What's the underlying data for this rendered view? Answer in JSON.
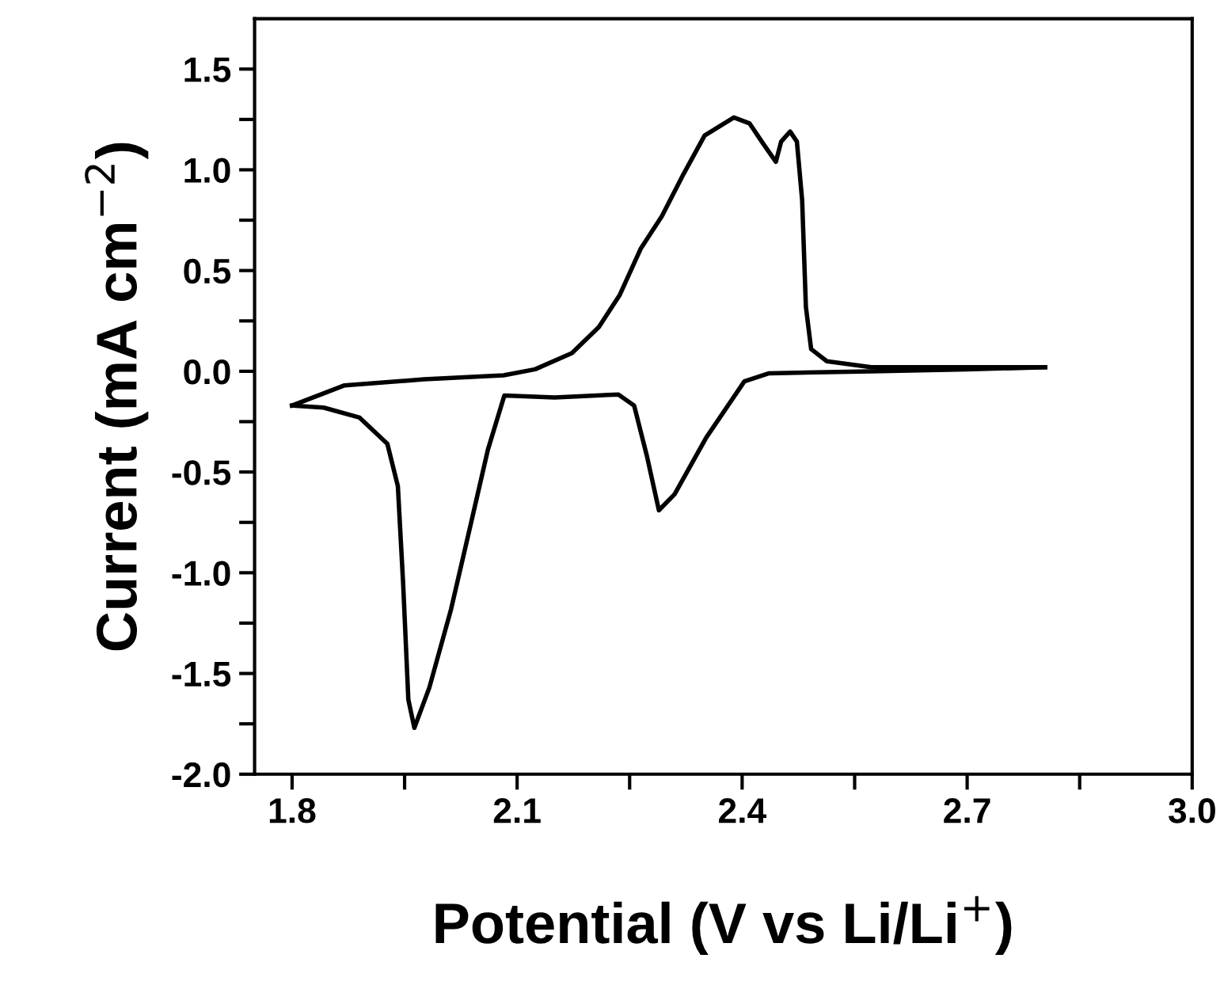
{
  "chart_data": {
    "type": "line",
    "xlabel": "Potential (V vs Li/Li$^{+}$)",
    "ylabel": "Current (mA cm$^{−2}$)",
    "series": [
      {
        "color": "#000000",
        "x": [
          1.8,
          1.87,
          1.976,
          2.082,
          2.124,
          2.173,
          2.209,
          2.237,
          2.265,
          2.293,
          2.322,
          2.35,
          2.389,
          2.41,
          2.428,
          2.445,
          2.452,
          2.464,
          2.473,
          2.48,
          2.485,
          2.492,
          2.513,
          2.572,
          2.7,
          2.804
        ],
        "values": [
          -0.17,
          -0.07,
          -0.04,
          -0.02,
          0.01,
          0.09,
          0.22,
          0.38,
          0.61,
          0.77,
          0.98,
          1.17,
          1.26,
          1.23,
          1.13,
          1.04,
          1.14,
          1.19,
          1.14,
          0.85,
          0.32,
          0.11,
          0.05,
          0.02,
          0.02,
          0.02
        ]
      },
      {
        "color": "#000000",
        "x": [
          1.8,
          1.842,
          1.89,
          1.927,
          1.941,
          1.948,
          1.955,
          1.963,
          1.983,
          2.012,
          2.04,
          2.061,
          2.083,
          2.15,
          2.235,
          2.256,
          2.273,
          2.289,
          2.31,
          2.352,
          2.403,
          2.436,
          2.572,
          2.7,
          2.804
        ],
        "values": [
          -0.17,
          -0.18,
          -0.23,
          -0.36,
          -0.57,
          -1.05,
          -1.63,
          -1.77,
          -1.57,
          -1.18,
          -0.73,
          -0.39,
          -0.12,
          -0.13,
          -0.115,
          -0.17,
          -0.42,
          -0.69,
          -0.61,
          -0.33,
          -0.05,
          -0.01,
          0.0,
          0.01,
          0.02
        ]
      }
    ],
    "xlim": [
      1.75,
      3.0
    ],
    "ylim": [
      -2.0,
      1.75
    ],
    "xticks": [
      {
        "value": 1.8,
        "label": "1.8"
      },
      {
        "value": 1.95,
        "label": null
      },
      {
        "value": 2.1,
        "label": "2.1"
      },
      {
        "value": 2.25,
        "label": null
      },
      {
        "value": 2.4,
        "label": "2.4"
      },
      {
        "value": 2.55,
        "label": null
      },
      {
        "value": 2.7,
        "label": "2.7"
      },
      {
        "value": 2.85,
        "label": null
      },
      {
        "value": 3.0,
        "label": "3.0"
      }
    ],
    "yticks": [
      {
        "value": -2.0,
        "label": "-2.0"
      },
      {
        "value": -1.75,
        "label": null
      },
      {
        "value": -1.5,
        "label": "-1.5"
      },
      {
        "value": -1.25,
        "label": null
      },
      {
        "value": -1.0,
        "label": "-1.0"
      },
      {
        "value": -0.75,
        "label": null
      },
      {
        "value": -0.5,
        "label": "-0.5"
      },
      {
        "value": -0.25,
        "label": null
      },
      {
        "value": 0.0,
        "label": "0.0"
      },
      {
        "value": 0.25,
        "label": null
      },
      {
        "value": 0.5,
        "label": "0.5"
      },
      {
        "value": 0.75,
        "label": null
      },
      {
        "value": 1.0,
        "label": "1.0"
      },
      {
        "value": 1.25,
        "label": null
      },
      {
        "value": 1.5,
        "label": "1.5"
      }
    ],
    "grid": false,
    "marker": "none",
    "line_style": "solid"
  }
}
